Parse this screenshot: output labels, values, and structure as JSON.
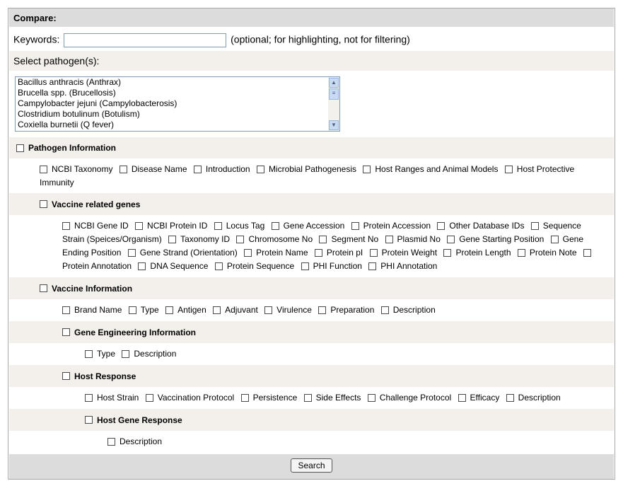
{
  "title": "Compare:",
  "keywords": {
    "label": "Keywords:",
    "value": "",
    "hint": "(optional; for highlighting, not for filtering)"
  },
  "pathogens": {
    "label": "Select pathogen(s):",
    "options": [
      "Bacillus anthracis (Anthrax)",
      "Brucella spp. (Brucellosis)",
      "Campylobacter jejuni (Campylobacterosis)",
      "Clostridium botulinum (Botulism)",
      "Coxiella burnetii (Q fever)"
    ]
  },
  "sections": [
    {
      "label": "Pathogen Information",
      "level": 0,
      "items": [
        "NCBI Taxonomy",
        "Disease Name",
        "Introduction",
        "Microbial Pathogenesis",
        "Host Ranges and Animal Models",
        "Host Protective Immunity"
      ]
    },
    {
      "label": "Vaccine related genes",
      "level": 1,
      "items": [
        "NCBI Gene ID",
        "NCBI Protein ID",
        "Locus Tag",
        "Gene Accession",
        "Protein Accession",
        "Other Database IDs",
        "Sequence Strain (Speices/Organism)",
        "Taxonomy ID",
        "Chromosome No",
        "Segment No",
        "Plasmid No",
        "Gene Starting Position",
        "Gene Ending Position",
        "Gene Strand (Orientation)",
        "Protein Name",
        "Protein pI",
        "Protein Weight",
        "Protein Length",
        "Protein Note",
        "Protein Annotation",
        "DNA Sequence",
        "Protein Sequence",
        "PHI Function",
        "PHI Annotation"
      ]
    },
    {
      "label": "Vaccine Information",
      "level": 1,
      "items": [
        "Brand Name",
        "Type",
        "Antigen",
        "Adjuvant",
        "Virulence",
        "Preparation",
        "Description"
      ]
    },
    {
      "label": "Gene Engineering Information",
      "level": 2,
      "items": [
        "Type",
        "Description"
      ]
    },
    {
      "label": "Host Response",
      "level": 2,
      "items": [
        "Host Strain",
        "Vaccination Protocol",
        "Persistence",
        "Side Effects",
        "Challenge Protocol",
        "Efficacy",
        "Description"
      ]
    },
    {
      "label": "Host Gene Response",
      "level": 3,
      "items": [
        "Description"
      ]
    }
  ],
  "search_label": "Search"
}
